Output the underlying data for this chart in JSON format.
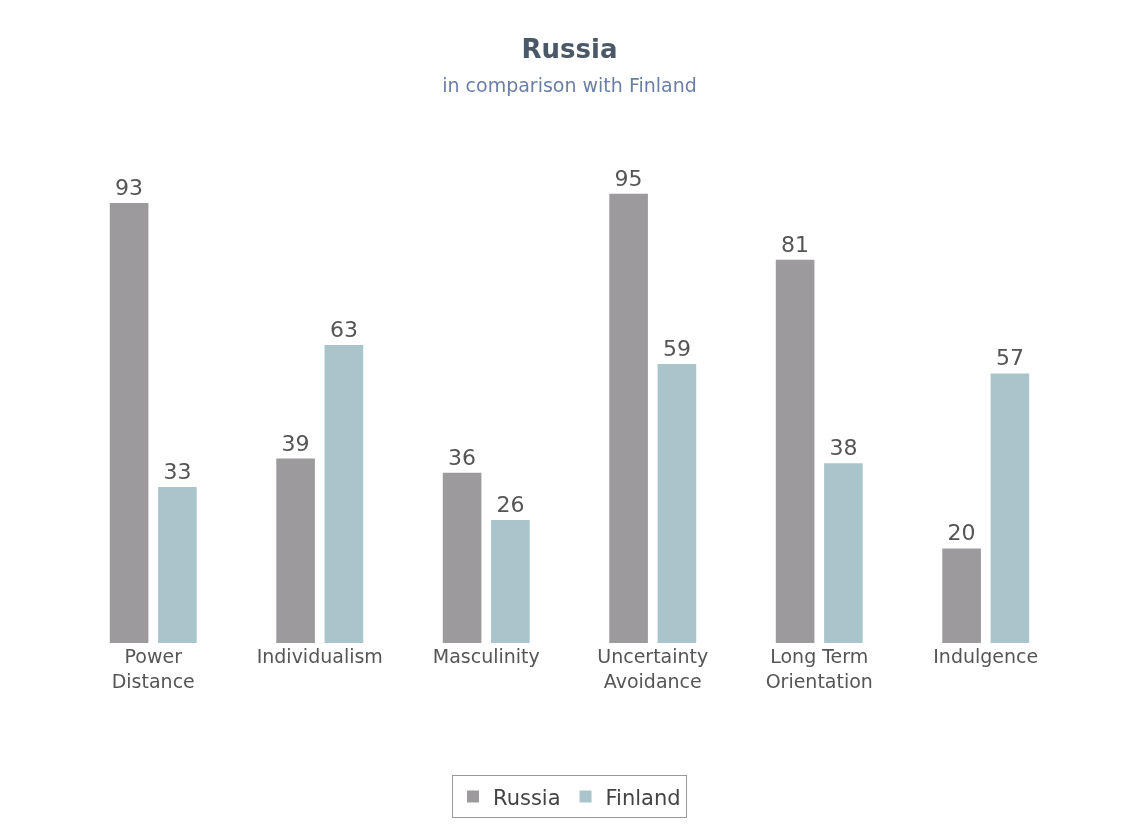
{
  "chart_data": {
    "type": "bar",
    "title": "Russia",
    "subtitle": "in comparison with Finland",
    "categories": [
      "Power Distance",
      "Individualism",
      "Masculinity",
      "Uncertainty Avoidance",
      "Long Term Orientation",
      "Indulgence"
    ],
    "series": [
      {
        "name": "Russia",
        "color": "#9c9a9d",
        "values": [
          93,
          39,
          36,
          95,
          81,
          20
        ]
      },
      {
        "name": "Finland",
        "color": "#aac4cb",
        "values": [
          33,
          63,
          26,
          59,
          38,
          57
        ]
      }
    ],
    "data_labels": true,
    "legend": "bottom"
  }
}
